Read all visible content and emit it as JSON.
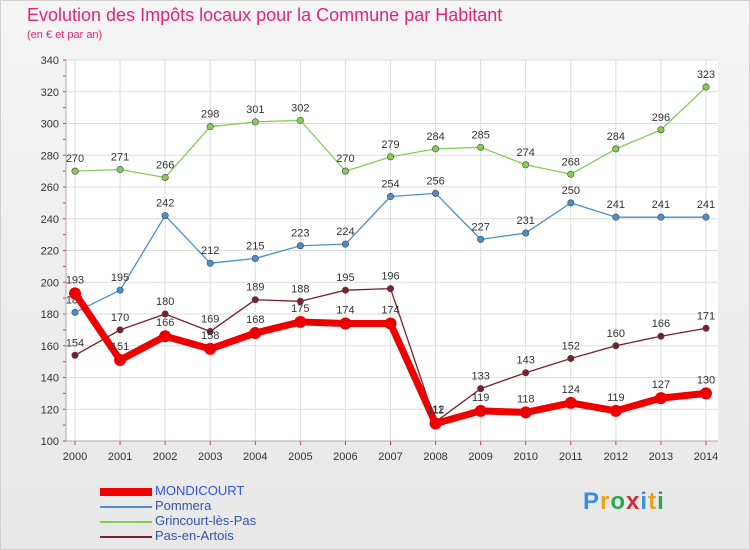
{
  "title": "Evolution des Impôts locaux pour la Commune par Habitant",
  "subtitle": "(en € et par an)",
  "logo": {
    "letters": [
      "P",
      "r",
      "o",
      "x",
      "i",
      "t",
      "i"
    ],
    "colors": [
      "#3a8fd6",
      "#e8a21c",
      "#2aa84a",
      "#d62a3a",
      "#3a8fd6",
      "#e8a21c",
      "#2aa84a"
    ]
  },
  "chart_data": {
    "type": "line",
    "x": [
      "2000",
      "2001",
      "2002",
      "2003",
      "2004",
      "2005",
      "2006",
      "2007",
      "2008",
      "2009",
      "2010",
      "2011",
      "2012",
      "2013",
      "2014"
    ],
    "ylim": [
      100,
      340
    ],
    "yticks": [
      100,
      120,
      140,
      160,
      180,
      200,
      220,
      240,
      260,
      280,
      300,
      320,
      340
    ],
    "grid": true,
    "legend_position": "bottom-left",
    "series": [
      {
        "name": "Grincourt-lès-Pas",
        "color": "#88cc55",
        "values": [
          270,
          271,
          266,
          298,
          301,
          302,
          270,
          279,
          284,
          285,
          274,
          268,
          284,
          296,
          323
        ]
      },
      {
        "name": "Pommera",
        "color": "#4a90c8",
        "values": [
          181,
          195,
          242,
          212,
          215,
          223,
          224,
          254,
          256,
          227,
          231,
          250,
          241,
          241,
          241
        ]
      },
      {
        "name": "Pas-en-Artois",
        "color": "#7a1f2b",
        "values": [
          154,
          170,
          180,
          169,
          189,
          188,
          195,
          196,
          112,
          133,
          143,
          152,
          160,
          166,
          171
        ]
      },
      {
        "name": "MONDICOURT",
        "color": "#ee0000",
        "values": [
          193,
          151,
          166,
          158,
          168,
          175,
          174,
          174,
          111,
          119,
          118,
          124,
          119,
          127,
          130
        ]
      }
    ],
    "legend_order": [
      "MONDICOURT",
      "Pommera",
      "Grincourt-lès-Pas",
      "Pas-en-Artois"
    ]
  }
}
